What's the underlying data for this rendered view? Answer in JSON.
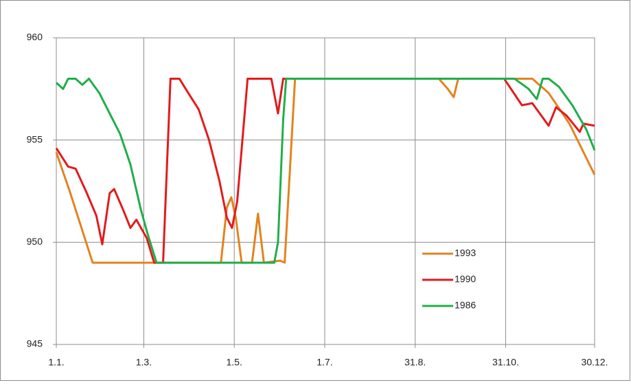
{
  "chart_data": {
    "type": "line",
    "xlim": [
      1,
      364
    ],
    "xticks": [
      {
        "value": 1,
        "label": "1.1."
      },
      {
        "value": 60,
        "label": "1.3."
      },
      {
        "value": 121,
        "label": "1.5."
      },
      {
        "value": 182,
        "label": "1.7."
      },
      {
        "value": 243,
        "label": "31.8."
      },
      {
        "value": 304,
        "label": "31.10."
      },
      {
        "value": 364,
        "label": "30.12."
      }
    ],
    "ylim": [
      945,
      960
    ],
    "yticks": [
      945,
      950,
      955,
      960
    ],
    "grid": true,
    "legend": "inside",
    "series": [
      {
        "name": "1993",
        "color": "#e2831f",
        "x": [
          1,
          10,
          18,
          25.5,
          60,
          112,
          116,
          119,
          122,
          126,
          133,
          137,
          141,
          152,
          155,
          162,
          200,
          259,
          265,
          269,
          272,
          322,
          333,
          347,
          364
        ],
        "values": [
          954.4,
          952.5,
          950.7,
          949,
          949,
          949,
          951.7,
          952.2,
          951.2,
          949,
          949,
          951.4,
          949,
          949.1,
          949,
          958,
          958,
          958,
          957.5,
          957.1,
          958,
          958,
          957.3,
          955.8,
          953.3
        ]
      },
      {
        "name": "1990",
        "color": "#e31a1c",
        "x": [
          1,
          9,
          14,
          21,
          28,
          32,
          37,
          40,
          46,
          51,
          55,
          62,
          67,
          73,
          78,
          84,
          90,
          97,
          104,
          111,
          116,
          119.5,
          123,
          130,
          146,
          150.5,
          154,
          200,
          303,
          315,
          322,
          333,
          338,
          345,
          354,
          356.5,
          364
        ],
        "values": [
          954.6,
          953.7,
          953.6,
          952.5,
          951.3,
          949.9,
          952.4,
          952.6,
          951.6,
          950.7,
          951.1,
          950.2,
          949,
          949,
          958,
          958,
          957.3,
          956.5,
          955,
          953,
          951.2,
          950.7,
          952,
          958,
          958,
          956.3,
          958,
          958,
          958,
          956.7,
          956.8,
          955.7,
          956.6,
          956.2,
          955.4,
          955.8,
          955.7
        ]
      },
      {
        "name": "1986",
        "color": "#1fae4a",
        "x": [
          1,
          5.6,
          9,
          14,
          18.6,
          23,
          30,
          37,
          44,
          51,
          58,
          62.6,
          68.6,
          100,
          148,
          150.5,
          154,
          156,
          200,
          310,
          319.5,
          325,
          329,
          333,
          340,
          349,
          358.5,
          364
        ],
        "values": [
          957.8,
          957.5,
          958,
          958,
          957.7,
          958,
          957.3,
          956.3,
          955.3,
          953.8,
          951.6,
          950.4,
          949,
          949,
          949,
          950,
          956,
          958,
          958,
          958,
          957.5,
          957,
          958,
          958,
          957.6,
          956.7,
          955.5,
          954.5
        ]
      }
    ]
  }
}
